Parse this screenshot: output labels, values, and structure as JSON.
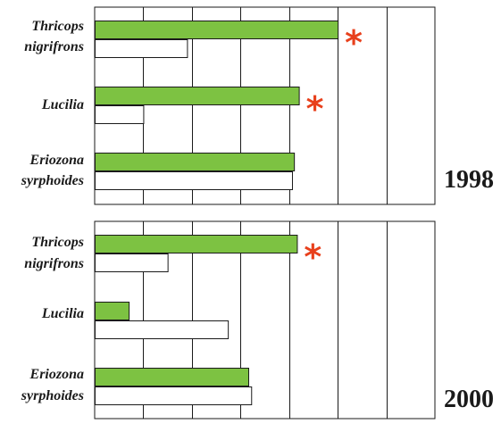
{
  "chart_data": [
    {
      "type": "bar",
      "orientation": "horizontal",
      "label": "1998",
      "categories": [
        [
          "Thricops",
          "nigrifrons"
        ],
        [
          "Lucilia"
        ],
        [
          "Eriozona",
          "syrphoides"
        ]
      ],
      "series": [
        {
          "color": "#7dc242",
          "values": [
            2.5,
            2.1,
            2.05
          ]
        },
        {
          "color": "#ffffff",
          "values": [
            0.95,
            0.5,
            2.03
          ]
        }
      ],
      "significant": [
        true,
        true,
        false
      ],
      "significance_mark": "*",
      "xlim": [
        0,
        3.5
      ],
      "grid": true
    },
    {
      "type": "bar",
      "orientation": "horizontal",
      "label": "2000",
      "categories": [
        [
          "Thricops",
          "nigrifrons"
        ],
        [
          "Lucilia"
        ],
        [
          "Eriozona",
          "syrphoides"
        ]
      ],
      "series": [
        {
          "color": "#7dc242",
          "values": [
            2.08,
            0.35,
            1.58
          ]
        },
        {
          "color": "#ffffff",
          "values": [
            0.75,
            1.37,
            1.61
          ]
        }
      ],
      "significant": [
        true,
        false,
        false
      ],
      "significance_mark": "*",
      "xlim": [
        0,
        3.5
      ],
      "grid": true
    }
  ],
  "colors": {
    "grid": "#1a1a1a",
    "star": "#e8401c",
    "bar_border": "#1a1a1a"
  }
}
